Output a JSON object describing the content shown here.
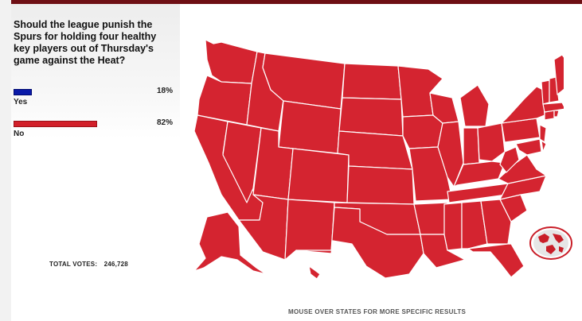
{
  "poll": {
    "question": "Should the league punish the Spurs for holding four healthy key players out of Thursday's game against the Heat?",
    "results": [
      {
        "label": "Yes",
        "percent_text": "18%",
        "percent": 18,
        "color": "#0a1aa8"
      },
      {
        "label": "No",
        "percent_text": "82%",
        "percent": 82,
        "color": "#d2202a"
      }
    ],
    "total_label": "TOTAL VOTES:",
    "total_value": "246,728"
  },
  "map": {
    "state_fill": "#d42430",
    "state_stroke": "#ffffff",
    "hint": "MOUSE OVER STATES FOR MORE SPECIFIC RESULTS"
  },
  "colors": {
    "accent": "#6e0f14"
  }
}
